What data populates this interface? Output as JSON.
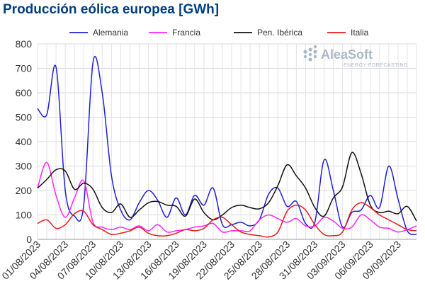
{
  "title": "Producción eólica europea [GWh]",
  "logo": {
    "name": "AleaSoft",
    "tagline": "ENERGY FORECASTING",
    "color": "#a8b8cc"
  },
  "chart_data": {
    "type": "line",
    "ylim": [
      0,
      800
    ],
    "y_ticks": [
      0,
      100,
      200,
      300,
      400,
      500,
      600,
      700,
      800
    ],
    "x_tick_labels": [
      "01/08/2023",
      "04/08/2023",
      "07/08/2023",
      "10/08/2023",
      "13/08/2023",
      "16/08/2023",
      "19/08/2023",
      "22/08/2023",
      "25/08/2023",
      "28/08/2023",
      "31/08/2023",
      "03/09/2023",
      "06/09/2023",
      "09/09/2023"
    ],
    "x_tick_step_days": 3,
    "x_range_days": 41,
    "grid": true,
    "legend_position": "top",
    "series": [
      {
        "name": "Alemania",
        "color": "#1f1fd6",
        "values": [
          535,
          510,
          705,
          200,
          95,
          140,
          725,
          600,
          260,
          120,
          80,
          150,
          200,
          160,
          90,
          170,
          100,
          180,
          140,
          210,
          60,
          60,
          70,
          55,
          80,
          185,
          210,
          135,
          155,
          65,
          70,
          325,
          200,
          50,
          110,
          120,
          180,
          130,
          300,
          165,
          35,
          20
        ]
      },
      {
        "name": "Francia",
        "color": "#ff22ff",
        "values": [
          210,
          315,
          180,
          90,
          170,
          240,
          70,
          50,
          40,
          50,
          40,
          55,
          35,
          60,
          30,
          35,
          40,
          50,
          55,
          65,
          30,
          35,
          35,
          35,
          80,
          100,
          85,
          70,
          85,
          55,
          55,
          90,
          75,
          45,
          50,
          100,
          80,
          50,
          45,
          30,
          40,
          55
        ]
      },
      {
        "name": "Pen. Ibérica",
        "color": "#111111",
        "values": [
          210,
          245,
          285,
          280,
          205,
          230,
          205,
          130,
          110,
          145,
          90,
          120,
          150,
          155,
          140,
          135,
          95,
          165,
          110,
          80,
          100,
          130,
          140,
          130,
          125,
          150,
          220,
          305,
          260,
          210,
          130,
          95,
          170,
          215,
          355,
          270,
          140,
          110,
          115,
          105,
          135,
          75
        ]
      },
      {
        "name": "Italia",
        "color": "#e81a1a",
        "values": [
          65,
          80,
          45,
          60,
          105,
          115,
          60,
          40,
          20,
          25,
          35,
          50,
          25,
          15,
          15,
          25,
          40,
          35,
          45,
          80,
          90,
          60,
          30,
          20,
          15,
          10,
          30,
          115,
          140,
          120,
          60,
          20,
          15,
          30,
          120,
          150,
          130,
          100,
          80,
          60,
          40,
          35
        ]
      }
    ]
  }
}
